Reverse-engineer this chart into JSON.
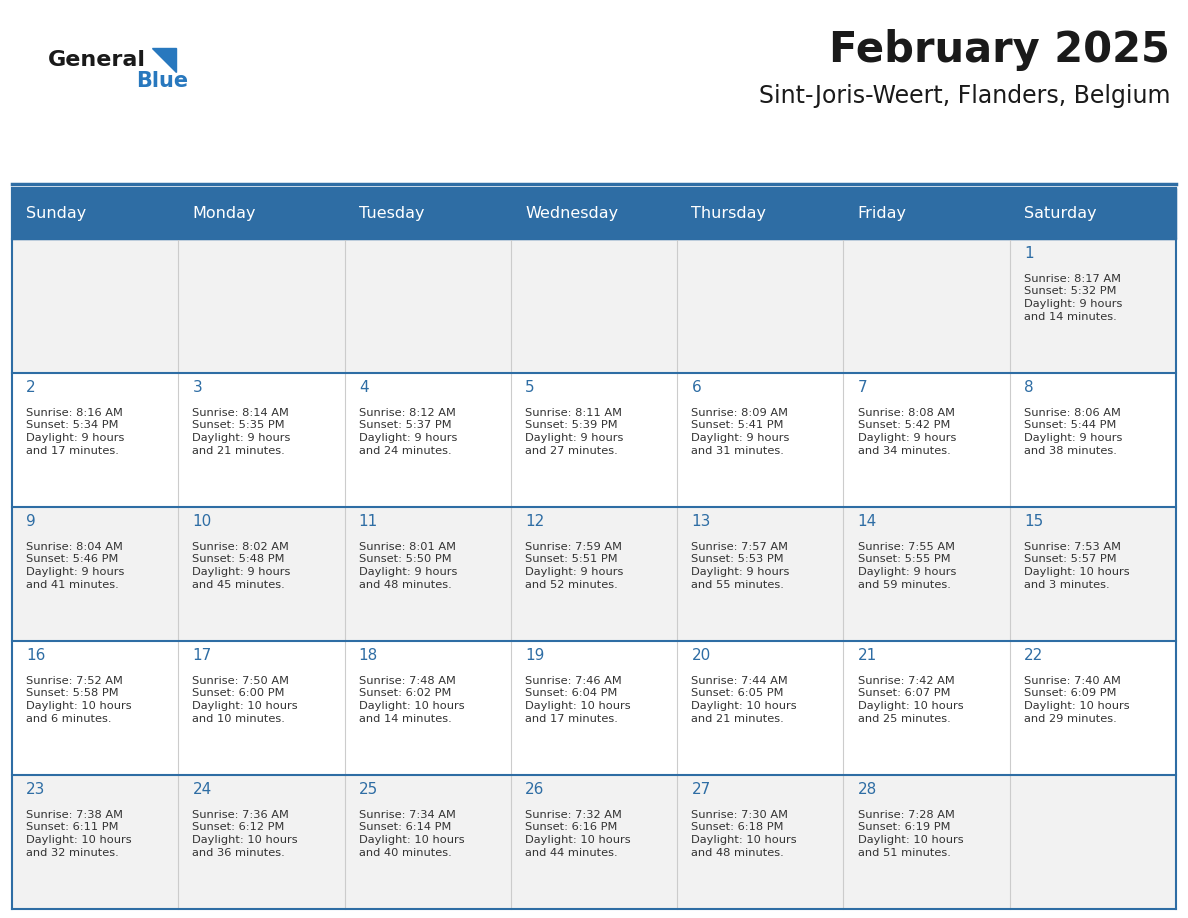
{
  "title": "February 2025",
  "subtitle": "Sint-Joris-Weert, Flanders, Belgium",
  "days_of_week": [
    "Sunday",
    "Monday",
    "Tuesday",
    "Wednesday",
    "Thursday",
    "Friday",
    "Saturday"
  ],
  "header_bg": "#2E6DA4",
  "header_text_color": "#FFFFFF",
  "row_bg_odd": "#F2F2F2",
  "row_bg_even": "#FFFFFF",
  "cell_text_color": "#333333",
  "day_number_color": "#2E6DA4",
  "border_color": "#2E6DA4",
  "logo_general_color": "#1a1a1a",
  "logo_blue_color": "#2878BE",
  "calendar": [
    [
      {
        "day": "",
        "info": ""
      },
      {
        "day": "",
        "info": ""
      },
      {
        "day": "",
        "info": ""
      },
      {
        "day": "",
        "info": ""
      },
      {
        "day": "",
        "info": ""
      },
      {
        "day": "",
        "info": ""
      },
      {
        "day": "1",
        "info": "Sunrise: 8:17 AM\nSunset: 5:32 PM\nDaylight: 9 hours\nand 14 minutes."
      }
    ],
    [
      {
        "day": "2",
        "info": "Sunrise: 8:16 AM\nSunset: 5:34 PM\nDaylight: 9 hours\nand 17 minutes."
      },
      {
        "day": "3",
        "info": "Sunrise: 8:14 AM\nSunset: 5:35 PM\nDaylight: 9 hours\nand 21 minutes."
      },
      {
        "day": "4",
        "info": "Sunrise: 8:12 AM\nSunset: 5:37 PM\nDaylight: 9 hours\nand 24 minutes."
      },
      {
        "day": "5",
        "info": "Sunrise: 8:11 AM\nSunset: 5:39 PM\nDaylight: 9 hours\nand 27 minutes."
      },
      {
        "day": "6",
        "info": "Sunrise: 8:09 AM\nSunset: 5:41 PM\nDaylight: 9 hours\nand 31 minutes."
      },
      {
        "day": "7",
        "info": "Sunrise: 8:08 AM\nSunset: 5:42 PM\nDaylight: 9 hours\nand 34 minutes."
      },
      {
        "day": "8",
        "info": "Sunrise: 8:06 AM\nSunset: 5:44 PM\nDaylight: 9 hours\nand 38 minutes."
      }
    ],
    [
      {
        "day": "9",
        "info": "Sunrise: 8:04 AM\nSunset: 5:46 PM\nDaylight: 9 hours\nand 41 minutes."
      },
      {
        "day": "10",
        "info": "Sunrise: 8:02 AM\nSunset: 5:48 PM\nDaylight: 9 hours\nand 45 minutes."
      },
      {
        "day": "11",
        "info": "Sunrise: 8:01 AM\nSunset: 5:50 PM\nDaylight: 9 hours\nand 48 minutes."
      },
      {
        "day": "12",
        "info": "Sunrise: 7:59 AM\nSunset: 5:51 PM\nDaylight: 9 hours\nand 52 minutes."
      },
      {
        "day": "13",
        "info": "Sunrise: 7:57 AM\nSunset: 5:53 PM\nDaylight: 9 hours\nand 55 minutes."
      },
      {
        "day": "14",
        "info": "Sunrise: 7:55 AM\nSunset: 5:55 PM\nDaylight: 9 hours\nand 59 minutes."
      },
      {
        "day": "15",
        "info": "Sunrise: 7:53 AM\nSunset: 5:57 PM\nDaylight: 10 hours\nand 3 minutes."
      }
    ],
    [
      {
        "day": "16",
        "info": "Sunrise: 7:52 AM\nSunset: 5:58 PM\nDaylight: 10 hours\nand 6 minutes."
      },
      {
        "day": "17",
        "info": "Sunrise: 7:50 AM\nSunset: 6:00 PM\nDaylight: 10 hours\nand 10 minutes."
      },
      {
        "day": "18",
        "info": "Sunrise: 7:48 AM\nSunset: 6:02 PM\nDaylight: 10 hours\nand 14 minutes."
      },
      {
        "day": "19",
        "info": "Sunrise: 7:46 AM\nSunset: 6:04 PM\nDaylight: 10 hours\nand 17 minutes."
      },
      {
        "day": "20",
        "info": "Sunrise: 7:44 AM\nSunset: 6:05 PM\nDaylight: 10 hours\nand 21 minutes."
      },
      {
        "day": "21",
        "info": "Sunrise: 7:42 AM\nSunset: 6:07 PM\nDaylight: 10 hours\nand 25 minutes."
      },
      {
        "day": "22",
        "info": "Sunrise: 7:40 AM\nSunset: 6:09 PM\nDaylight: 10 hours\nand 29 minutes."
      }
    ],
    [
      {
        "day": "23",
        "info": "Sunrise: 7:38 AM\nSunset: 6:11 PM\nDaylight: 10 hours\nand 32 minutes."
      },
      {
        "day": "24",
        "info": "Sunrise: 7:36 AM\nSunset: 6:12 PM\nDaylight: 10 hours\nand 36 minutes."
      },
      {
        "day": "25",
        "info": "Sunrise: 7:34 AM\nSunset: 6:14 PM\nDaylight: 10 hours\nand 40 minutes."
      },
      {
        "day": "26",
        "info": "Sunrise: 7:32 AM\nSunset: 6:16 PM\nDaylight: 10 hours\nand 44 minutes."
      },
      {
        "day": "27",
        "info": "Sunrise: 7:30 AM\nSunset: 6:18 PM\nDaylight: 10 hours\nand 48 minutes."
      },
      {
        "day": "28",
        "info": "Sunrise: 7:28 AM\nSunset: 6:19 PM\nDaylight: 10 hours\nand 51 minutes."
      },
      {
        "day": "",
        "info": ""
      }
    ]
  ]
}
